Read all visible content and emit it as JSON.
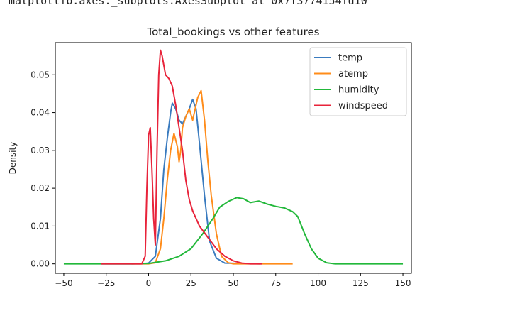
{
  "header": {
    "output_text": "matplotlib.axes._subplots.AxesSubplot at 0x7f3774154fd10"
  },
  "chart_data": {
    "type": "line",
    "title": "Total_bookings vs other features",
    "xlabel": "",
    "ylabel": "Density",
    "xlim": [
      -55,
      155
    ],
    "ylim": [
      -0.0025,
      0.0585
    ],
    "xticks": [
      -50,
      -25,
      0,
      25,
      50,
      75,
      100,
      125,
      150
    ],
    "yticks": [
      0.0,
      0.01,
      0.02,
      0.03,
      0.04,
      0.05
    ],
    "xtick_labels": [
      "−50",
      "−25",
      "0",
      "25",
      "50",
      "75",
      "100",
      "125",
      "150"
    ],
    "ytick_labels": [
      "0.00",
      "0.01",
      "0.02",
      "0.03",
      "0.04",
      "0.05"
    ],
    "grid": false,
    "legend_position": "top-right",
    "series": [
      {
        "name": "temp",
        "color": "#3a7bbf",
        "x": [
          -28,
          -5,
          0,
          4,
          7,
          9,
          11,
          13,
          14,
          16,
          18,
          20,
          22,
          24,
          26,
          28,
          30,
          33,
          36,
          40,
          45,
          66
        ],
        "y": [
          0,
          0,
          0.0002,
          0.002,
          0.012,
          0.025,
          0.033,
          0.04,
          0.0425,
          0.041,
          0.038,
          0.037,
          0.039,
          0.041,
          0.0435,
          0.041,
          0.032,
          0.018,
          0.006,
          0.0015,
          0.0002,
          0
        ]
      },
      {
        "name": "atemp",
        "color": "#ff8c1a",
        "x": [
          -10,
          0,
          4,
          7,
          9,
          11,
          13,
          15,
          17,
          18,
          19,
          20,
          22,
          24,
          26,
          27,
          29,
          31,
          33,
          35,
          37,
          40,
          43,
          47,
          50,
          85
        ],
        "y": [
          0,
          0,
          0.0003,
          0.004,
          0.012,
          0.022,
          0.03,
          0.0345,
          0.031,
          0.027,
          0.03,
          0.036,
          0.039,
          0.041,
          0.038,
          0.04,
          0.044,
          0.0458,
          0.038,
          0.027,
          0.018,
          0.008,
          0.002,
          0.0003,
          0,
          0
        ]
      },
      {
        "name": "humidity",
        "color": "#22b83a",
        "x": [
          -50,
          -10,
          0,
          10,
          18,
          25,
          32,
          38,
          42,
          47,
          52,
          56,
          60,
          65,
          70,
          75,
          80,
          85,
          88,
          92,
          96,
          100,
          105,
          110,
          115,
          150
        ],
        "y": [
          0,
          0,
          0.0001,
          0.0008,
          0.002,
          0.004,
          0.008,
          0.012,
          0.015,
          0.0165,
          0.0175,
          0.0172,
          0.0162,
          0.0166,
          0.0158,
          0.0152,
          0.0148,
          0.0138,
          0.0125,
          0.008,
          0.004,
          0.0015,
          0.0003,
          0,
          0,
          0
        ]
      },
      {
        "name": "windspeed",
        "color": "#e8233a",
        "x": [
          -28,
          -4,
          -2,
          -1,
          0,
          1,
          2,
          3,
          4,
          5,
          6,
          7,
          8,
          10,
          12,
          14,
          16,
          18,
          20,
          22,
          24,
          26,
          30,
          35,
          40,
          45,
          50,
          55,
          60,
          67
        ],
        "y": [
          0,
          0,
          0.002,
          0.02,
          0.034,
          0.036,
          0.025,
          0.012,
          0.005,
          0.03,
          0.05,
          0.0565,
          0.055,
          0.05,
          0.049,
          0.047,
          0.042,
          0.036,
          0.03,
          0.022,
          0.017,
          0.014,
          0.01,
          0.007,
          0.004,
          0.002,
          0.0008,
          0.0002,
          0,
          0
        ]
      }
    ]
  }
}
